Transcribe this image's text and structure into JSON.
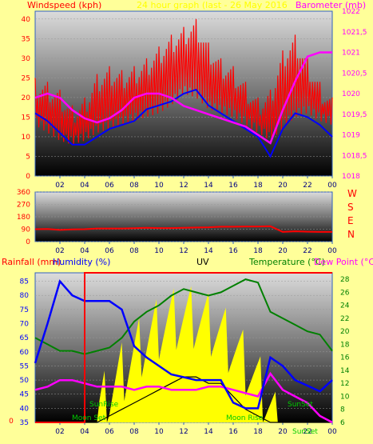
{
  "header": {
    "left_label": "Windspeed (kph)",
    "center_label": "24 hour graph (last - 26 May 2016",
    "right_label": "Barometer (mb)"
  },
  "labels": {
    "rainfall": "Rainfall (mm)",
    "humidity": "Humidity (%)",
    "uv": "UV",
    "temperature": "Temperature (°C)",
    "dewpoint": "Dew Point (°C)",
    "sunrise": "SunRise",
    "sunset": "SunSet",
    "moonset": "Moon Set",
    "moonrise": "Moon Rise",
    "compass": [
      "W",
      "S",
      "E",
      "N"
    ]
  },
  "colors": {
    "page_bg": "#ffff99",
    "plot_top": "#d8d8d8",
    "plot_bottom": "#000000",
    "wind": "#ff0000",
    "avg_wind": "#0000ff",
    "barometer": "#ff00ff",
    "direction": "#ff0000",
    "humidity": "#0000ff",
    "temperature": "#008000",
    "dewpoint": "#ff00ff",
    "uv": "#000000",
    "solar": "#ffff00",
    "rainfall": "#ff0000",
    "sunrise_text": "#00cc00"
  },
  "chart_data": [
    {
      "type": "line",
      "title": "24 hour graph (last - 26 May 2016",
      "ylabel": "Windspeed (kph)",
      "y2label": "Barometer (mb)",
      "x_ticks": [
        "02",
        "04",
        "06",
        "08",
        "10",
        "12",
        "14",
        "16",
        "18",
        "20",
        "22",
        "00"
      ],
      "x_hours": [
        0,
        1,
        2,
        3,
        4,
        5,
        6,
        7,
        8,
        9,
        10,
        11,
        12,
        13,
        14,
        15,
        16,
        17,
        18,
        19,
        20,
        21,
        22,
        23,
        24
      ],
      "ylim": [
        0,
        42
      ],
      "y_ticks": [
        0,
        5,
        10,
        15,
        20,
        25,
        30,
        35,
        40
      ],
      "y2lim": [
        1018,
        1022
      ],
      "y2_ticks": [
        "1018",
        "1018,5",
        "1019",
        "1019,5",
        "1020",
        "1020,5",
        "1021",
        "1021,5",
        "1022"
      ],
      "series": [
        {
          "name": "Windspeed (kph)",
          "axis": "left",
          "kind": "gust",
          "low": [
            12,
            10,
            8,
            7,
            8,
            10,
            11,
            12,
            13,
            14,
            15,
            17,
            20,
            19,
            16,
            15,
            14,
            12,
            10,
            8,
            11,
            14,
            15,
            13,
            12
          ],
          "high": [
            25,
            24,
            22,
            18,
            20,
            26,
            28,
            27,
            28,
            30,
            33,
            36,
            38,
            40,
            34,
            30,
            28,
            24,
            20,
            22,
            32,
            36,
            30,
            24,
            20
          ]
        },
        {
          "name": "",
          "axis": "left",
          "kind": "line",
          "values": [
            16,
            14,
            11,
            8,
            8,
            10,
            12,
            13,
            14,
            17,
            18,
            19,
            21,
            22,
            18,
            16,
            14,
            12,
            10,
            5,
            12,
            16,
            15,
            13,
            10
          ]
        },
        {
          "name": "Barometer (mb)",
          "axis": "right",
          "kind": "line",
          "values": [
            1019.9,
            1020.0,
            1019.9,
            1019.6,
            1019.4,
            1019.3,
            1019.4,
            1019.6,
            1019.9,
            1020.0,
            1020.0,
            1019.9,
            1019.7,
            1019.6,
            1019.5,
            1019.4,
            1019.3,
            1019.2,
            1019.0,
            1018.8,
            1019.6,
            1020.3,
            1020.9,
            1021.0,
            1021.0
          ]
        }
      ]
    },
    {
      "type": "line",
      "x_ticks": [
        "02",
        "04",
        "06",
        "08",
        "10",
        "12",
        "14",
        "16",
        "18",
        "20",
        "22",
        "00"
      ],
      "ylim": [
        0,
        360
      ],
      "y_ticks": [
        0,
        90,
        180,
        270,
        360
      ],
      "series": [
        {
          "name": "",
          "values": [
            90,
            92,
            85,
            88,
            90,
            95,
            95,
            95,
            97,
            100,
            98,
            98,
            100,
            102,
            104,
            108,
            108,
            110,
            110,
            112,
            70,
            75,
            72,
            70,
            70
          ]
        }
      ]
    },
    {
      "type": "line",
      "x_ticks": [
        "02",
        "04",
        "06",
        "08",
        "10",
        "12",
        "14",
        "16",
        "18",
        "20",
        "22",
        "00"
      ],
      "ylim": [
        35,
        88
      ],
      "y_ticks": [
        35,
        40,
        45,
        50,
        55,
        60,
        65,
        70,
        75,
        80,
        85
      ],
      "y2lim": [
        6,
        29
      ],
      "y2_ticks": [
        6,
        8,
        10,
        12,
        14,
        16,
        18,
        20,
        22,
        24,
        26,
        28
      ],
      "series": [
        {
          "name": "Humidity (%)",
          "axis": "left",
          "values": [
            56,
            70,
            85,
            80,
            78,
            78,
            78,
            75,
            62,
            58,
            55,
            52,
            51,
            50,
            50,
            50,
            42,
            40,
            40,
            58,
            55,
            50,
            48,
            46,
            50
          ]
        },
        {
          "name": "Temperature (°C)",
          "axis": "right",
          "values": [
            19,
            18,
            17,
            17,
            16.5,
            17,
            17.5,
            19,
            21.5,
            23,
            24,
            25.5,
            26.5,
            26,
            25.5,
            26,
            27,
            28,
            27.5,
            23,
            22,
            21,
            20,
            19.5,
            17
          ]
        },
        {
          "name": "Dew Point (°C)",
          "axis": "right",
          "values": [
            11,
            11.5,
            12.5,
            12.5,
            12,
            11.5,
            11.5,
            11.5,
            11,
            11.5,
            11.5,
            11,
            11,
            11,
            11.5,
            11.5,
            11,
            10.5,
            10,
            13.5,
            11,
            10,
            9,
            7,
            6
          ]
        },
        {
          "name": "UV",
          "axis": "right",
          "kind": "area",
          "values": [
            6,
            6,
            6,
            6,
            6,
            6,
            7,
            8,
            9,
            10,
            11,
            12,
            13,
            13,
            12,
            12,
            10,
            8,
            7,
            6,
            6,
            6,
            6,
            6,
            6
          ]
        },
        {
          "name": "Rainfall (mm)",
          "axis": "right",
          "kind": "step",
          "values": [
            6,
            6,
            6,
            6,
            29,
            29,
            29,
            29,
            29,
            29,
            29,
            29,
            29,
            29,
            29,
            29,
            29,
            29,
            29,
            29,
            29,
            29,
            29,
            29,
            29
          ]
        }
      ]
    }
  ]
}
